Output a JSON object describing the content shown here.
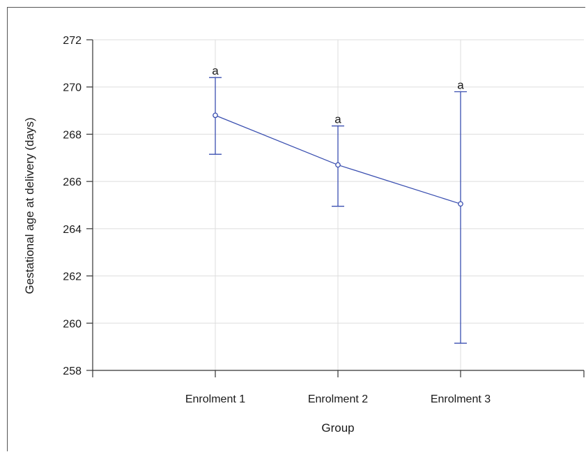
{
  "chart_data": {
    "type": "line",
    "title": "",
    "xlabel": "Group",
    "ylabel": "Gestational age at delivery (days)",
    "categories": [
      "Enrolment 1",
      "Enrolment 2",
      "Enrolment 3"
    ],
    "ylim": [
      258,
      272
    ],
    "yticks": [
      "258",
      "260",
      "262",
      "264",
      "266",
      "268",
      "270",
      "272"
    ],
    "grid": true,
    "series": [
      {
        "values": [
          268.8,
          266.7,
          265.05
        ],
        "error_upper": [
          270.4,
          268.35,
          269.8
        ],
        "error_lower": [
          267.15,
          264.95,
          259.15
        ],
        "labels": [
          "a",
          "a",
          "a"
        ]
      }
    ],
    "colors": {
      "series": "#3a4fb0",
      "grid": "#dddddd",
      "axis": "#333333"
    }
  }
}
